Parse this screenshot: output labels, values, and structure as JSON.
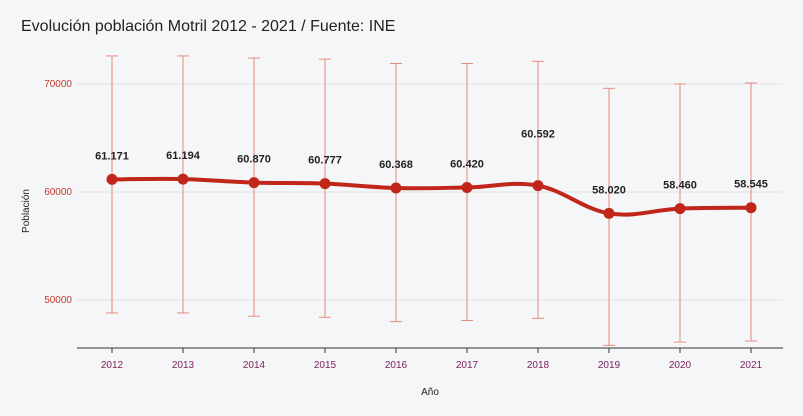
{
  "chart_data": {
    "type": "line",
    "title": "Evolución población Motril 2012 - 2021 / Fuente: INE",
    "xlabel": "Año",
    "ylabel": "Población",
    "categories": [
      "2012",
      "2013",
      "2014",
      "2015",
      "2016",
      "2017",
      "2018",
      "2019",
      "2020",
      "2021"
    ],
    "series": [
      {
        "name": "Población",
        "values": [
          61171,
          61194,
          60870,
          60777,
          60368,
          60420,
          60592,
          58020,
          58460,
          58545
        ],
        "labels": [
          "61.171",
          "61.194",
          "60.870",
          "60.777",
          "60.368",
          "60.420",
          "60.592",
          "58.020",
          "58.460",
          "58.545"
        ],
        "error_low": [
          48800,
          48800,
          48500,
          48400,
          48000,
          48100,
          48300,
          45800,
          46100,
          46200
        ],
        "error_high": [
          72600,
          72600,
          72400,
          72300,
          71900,
          71900,
          72100,
          69600,
          70000,
          70100
        ]
      }
    ],
    "yticks": [
      50000,
      60000,
      70000
    ],
    "ytick_labels": [
      "50000",
      "60000",
      "70000"
    ],
    "ylim": [
      45000,
      75000
    ],
    "grid": true,
    "colors": {
      "line": "#c0261a",
      "error": "#e88a7f",
      "grid": "#dfe3e6",
      "axis": "#333333"
    }
  }
}
